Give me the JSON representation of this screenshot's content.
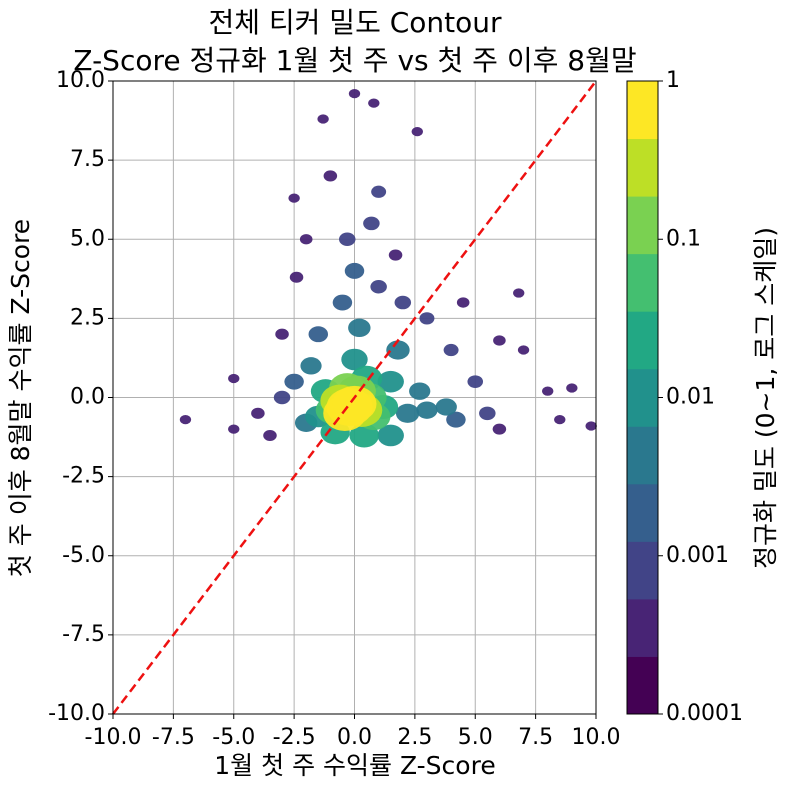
{
  "chart_data": {
    "type": "density",
    "title": [
      "전체 티커 밀도 Contour",
      "Z-Score 정규화 1월 첫 주 vs 첫 주 이후 8월말"
    ],
    "x_label": "1월 첫 주 수익률 Z-Score",
    "y_label": "첫 주 이후 8월말 수익률 Z-Score",
    "colorbar_label": "정규화 밀도 (0~1, 로그 스케일)",
    "xlim": [
      -10,
      10
    ],
    "ylim": [
      -10,
      10
    ],
    "xticks": [
      {
        "value": -10,
        "label": "-10.0"
      },
      {
        "value": -7.5,
        "label": "-7.5"
      },
      {
        "value": -5,
        "label": "-5.0"
      },
      {
        "value": -2.5,
        "label": "-2.5"
      },
      {
        "value": 0,
        "label": "0.0"
      },
      {
        "value": 2.5,
        "label": "2.5"
      },
      {
        "value": 5,
        "label": "5.0"
      },
      {
        "value": 7.5,
        "label": "7.5"
      },
      {
        "value": 10,
        "label": "10.0"
      }
    ],
    "yticks": [
      {
        "value": -10,
        "label": "-10.0"
      },
      {
        "value": -7.5,
        "label": "-7.5"
      },
      {
        "value": -5,
        "label": "-5.0"
      },
      {
        "value": -2.5,
        "label": "-2.5"
      },
      {
        "value": 0,
        "label": "0.0"
      },
      {
        "value": 2.5,
        "label": "2.5"
      },
      {
        "value": 5,
        "label": "5.0"
      },
      {
        "value": 7.5,
        "label": "7.5"
      },
      {
        "value": 10,
        "label": "10.0"
      }
    ],
    "clim": [
      0.0001,
      1
    ],
    "cticks": [
      0.0001,
      0.001,
      0.01,
      0.1,
      1
    ],
    "clog": true,
    "colormap": [
      "#440154",
      "#482475",
      "#414487",
      "#355f8d",
      "#2a788e",
      "#21918c",
      "#22a884",
      "#44bf70",
      "#7ad151",
      "#bddf26",
      "#fde725"
    ],
    "grid": true,
    "reference_line_color": "#ee1111",
    "x": [
      -0.2,
      0,
      -0.4,
      0.3,
      -0.6,
      0.1,
      -0.3,
      0.6,
      -0.9,
      0.8,
      0.5,
      -1.2,
      1.2,
      1.5,
      -1.5,
      0,
      1.8,
      2.2,
      -2,
      0.2,
      3,
      3.8,
      4.2,
      -2.5,
      -0.5,
      0,
      -0.3,
      0.7,
      1,
      -1,
      0,
      0.8,
      -1.3,
      2.6,
      -2.5,
      -2.4,
      5.5,
      6.8,
      6,
      7,
      8,
      9,
      9.8,
      8.5,
      -7,
      -5,
      -5,
      -4,
      -3.5,
      -3,
      2,
      3,
      4,
      5,
      -1.5,
      1.5,
      -0.8,
      0.4,
      2.7,
      -1.8,
      1,
      -2,
      1.7,
      -3,
      4.5,
      6
    ],
    "y": [
      -0.3,
      -0.2,
      -0.5,
      -0.4,
      -0.1,
      0.2,
      0.3,
      0,
      -0.4,
      -0.6,
      0.6,
      0.2,
      -0.3,
      0.5,
      -0.6,
      1.2,
      1.5,
      -0.5,
      -0.8,
      2.2,
      -0.4,
      -0.3,
      -0.7,
      0.5,
      3,
      4,
      5,
      5.5,
      6.5,
      7,
      9.6,
      9.3,
      8.8,
      8.4,
      6.3,
      3.8,
      -0.5,
      3.3,
      1.8,
      1.5,
      0.2,
      0.3,
      -0.9,
      -0.7,
      -0.7,
      0.6,
      -1,
      -0.5,
      -1.2,
      0,
      3,
      2.5,
      1.5,
      0.5,
      2,
      -1.2,
      -1.1,
      -1.2,
      0.2,
      1,
      3.5,
      5,
      4.5,
      2,
      3,
      -1
    ],
    "values": [
      1,
      0.6,
      0.5,
      0.3,
      0.2,
      0.15,
      0.1,
      0.08,
      0.06,
      0.05,
      0.03,
      0.02,
      0.02,
      0.01,
      0.01,
      0.01,
      0.005,
      0.005,
      0.004,
      0.004,
      0.003,
      0.003,
      0.002,
      0.002,
      0.002,
      0.002,
      0.001,
      0.001,
      0.0007,
      0.0005,
      0.0003,
      0.0003,
      0.0003,
      0.0003,
      0.0003,
      0.0005,
      0.001,
      0.0003,
      0.0004,
      0.0003,
      0.0003,
      0.0003,
      0.0003,
      0.0003,
      0.0003,
      0.0003,
      0.0003,
      0.0005,
      0.0005,
      0.001,
      0.001,
      0.0007,
      0.0007,
      0.0008,
      0.002,
      0.01,
      0.02,
      0.02,
      0.003,
      0.003,
      0.001,
      0.0004,
      0.0005,
      0.0005,
      0.0004,
      0.0005
    ]
  }
}
